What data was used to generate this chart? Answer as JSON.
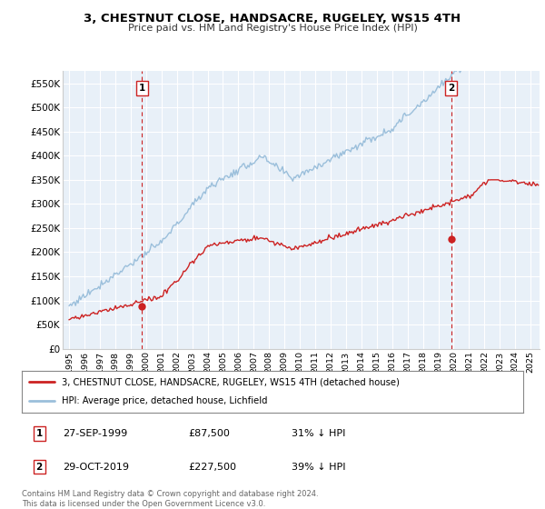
{
  "title": "3, CHESTNUT CLOSE, HANDSACRE, RUGELEY, WS15 4TH",
  "subtitle": "Price paid vs. HM Land Registry's House Price Index (HPI)",
  "ylim": [
    0,
    575000
  ],
  "xlim_start": 1994.58,
  "xlim_end": 2025.58,
  "yticks": [
    0,
    50000,
    100000,
    150000,
    200000,
    250000,
    300000,
    350000,
    400000,
    450000,
    500000,
    550000
  ],
  "ytick_labels": [
    "£0",
    "£50K",
    "£100K",
    "£150K",
    "£200K",
    "£250K",
    "£300K",
    "£350K",
    "£400K",
    "£450K",
    "£500K",
    "£550K"
  ],
  "hpi_color": "#9bbfdb",
  "price_color": "#cc2222",
  "dashed_line_color": "#cc2222",
  "plot_bg_color": "#e8f0f8",
  "bg_color": "#ffffff",
  "grid_color": "#ffffff",
  "marker1_year": 1999.74,
  "marker1_price": 87500,
  "marker1_label": "1",
  "marker1_date": "27-SEP-1999",
  "marker1_pct": "31% ↓ HPI",
  "marker2_year": 2019.83,
  "marker2_price": 227500,
  "marker2_label": "2",
  "marker2_date": "29-OCT-2019",
  "marker2_pct": "39% ↓ HPI",
  "legend_line1": "3, CHESTNUT CLOSE, HANDSACRE, RUGELEY, WS15 4TH (detached house)",
  "legend_line2": "HPI: Average price, detached house, Lichfield",
  "footer": "Contains HM Land Registry data © Crown copyright and database right 2024.\nThis data is licensed under the Open Government Licence v3.0."
}
